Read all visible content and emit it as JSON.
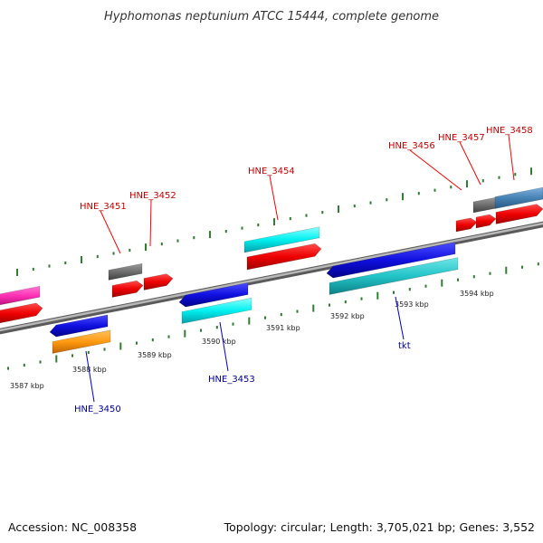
{
  "title": "Hyphomonas neptunium ATCC 15444, complete genome",
  "accession_text": "Accession: NC_008358",
  "topology_text": "Topology: circular; Length: 3,705,021 bp; Genes: 3,552",
  "colors": {
    "backbone": "#8c8c8c",
    "tick": "#2f7f2f",
    "label_forward": "#cc0000",
    "label_reverse": "#000099"
  },
  "tick_labels": [
    "3587 kbp",
    "3588 kbp",
    "3589 kbp",
    "3590 kbp",
    "3591 kbp",
    "3592 kbp",
    "3593 kbp",
    "3594 kbp"
  ],
  "gene_labels": {
    "forward": [
      "HNE_3451",
      "HNE_3452",
      "HNE_3454",
      "HNE_3456",
      "HNE_3457",
      "HNE_3458"
    ],
    "reverse": [
      "HNE_3450",
      "HNE_3453",
      "tkt"
    ]
  }
}
